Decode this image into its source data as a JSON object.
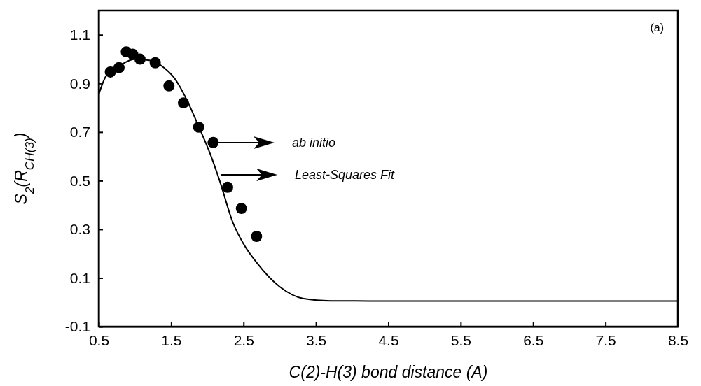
{
  "chart_data": {
    "type": "scatter",
    "xlabel": "C(2)-H(3) bond distance (A)",
    "ylabel": "S$_{2}$(R$_{CH(3)}$)",
    "xlim": [
      0.5,
      8.5
    ],
    "xticks": [
      0.5,
      1.5,
      2.5,
      3.5,
      4.5,
      5.5,
      6.5,
      7.5,
      8.5
    ],
    "ylim": [
      -0.1,
      1.2
    ],
    "yticks": [
      -0.1,
      0.1,
      0.3,
      0.5,
      0.7,
      0.9,
      1.1
    ],
    "grid": false,
    "series": [
      {
        "type": "scatter",
        "marker": "circle",
        "color": "#000000",
        "x": [
          0.66,
          0.78,
          0.88,
          0.97,
          1.07,
          1.28,
          1.47,
          1.67,
          1.88,
          2.08,
          2.28,
          2.47,
          2.68
        ],
        "values": [
          0.947,
          0.965,
          1.03,
          1.02,
          1.0,
          0.985,
          0.89,
          0.82,
          0.72,
          0.657,
          0.473,
          0.386,
          0.271
        ]
      },
      {
        "type": "line",
        "marker": "none",
        "line_style": "solid",
        "color": "#000000",
        "x": [
          0.5,
          0.6,
          0.8,
          1.0,
          1.2,
          1.4,
          1.55,
          1.72,
          1.87,
          2.04,
          2.17,
          2.35,
          2.5,
          2.69,
          3.0,
          3.33,
          3.7,
          4.5,
          8.5
        ],
        "values": [
          0.855,
          0.93,
          0.975,
          1.0,
          0.995,
          0.965,
          0.92,
          0.83,
          0.73,
          0.61,
          0.5,
          0.33,
          0.24,
          0.16,
          0.064,
          0.015,
          0.006,
          0.005,
          0.005
        ]
      }
    ],
    "annotations": [
      "ab initio",
      "Least-Squares Fit",
      "(a)"
    ]
  }
}
